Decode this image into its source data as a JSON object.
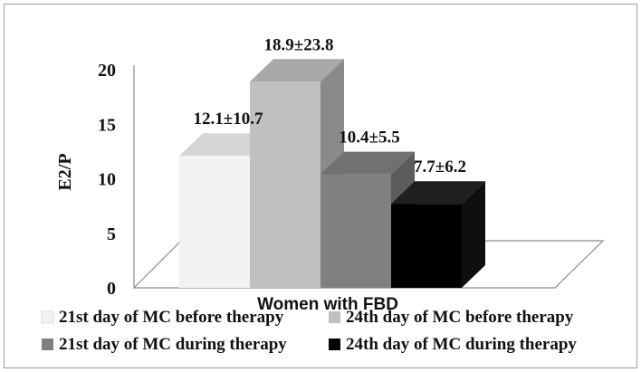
{
  "chart_data": {
    "type": "bar",
    "style": "3d-column",
    "title": "",
    "xlabel": "Women with FBD",
    "ylabel": "E2/P",
    "ylim": [
      0,
      20
    ],
    "yticks": [
      "0",
      "5",
      "10",
      "15",
      "20"
    ],
    "categories": [
      "Women with FBD"
    ],
    "grid": false,
    "legend_position": "bottom",
    "series": [
      {
        "name": "21st day of MC before therapy",
        "values": [
          12.1
        ],
        "label": "12.1±10.7",
        "color": "#f2f2f2"
      },
      {
        "name": "24th day of MC before therapy",
        "values": [
          18.9
        ],
        "label": "18.9±23.8",
        "color": "#c0c0c0"
      },
      {
        "name": "21st day of MC during therapy",
        "values": [
          10.4
        ],
        "label": "10.4±5.5",
        "color": "#808080"
      },
      {
        "name": "24th day of MC during therapy",
        "values": [
          7.7
        ],
        "label": "7.7±6.2",
        "color": "#000000"
      }
    ]
  }
}
